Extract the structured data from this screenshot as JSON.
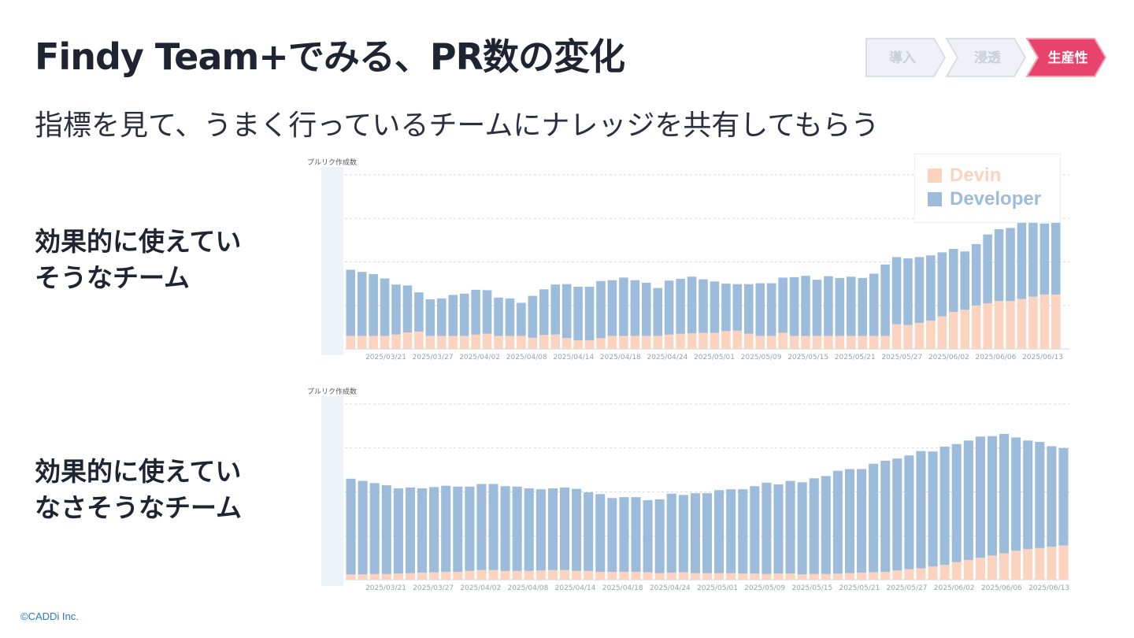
{
  "page": {
    "title": "Findy Team+でみる、PR数の変化",
    "subtitle": "指標を見て、うまく行っているチームにナレッジを共有してもらう",
    "copyright": "©CADDi Inc."
  },
  "steps": [
    {
      "label": "導入",
      "active": false
    },
    {
      "label": "浸透",
      "active": false
    },
    {
      "label": "生産性",
      "active": true
    }
  ],
  "colors": {
    "devin": "#fbd3be",
    "developer": "#9dbbdb",
    "accent": "#e8436b",
    "step_inactive_fill": "#eef1f6",
    "step_inactive_text": "#c9cfd9"
  },
  "legend": [
    {
      "name": "Devin",
      "color": "#fbd3be"
    },
    {
      "name": "Developer",
      "color": "#9dbbdb"
    }
  ],
  "teams": [
    {
      "label_line1": "効果的に使えてい",
      "label_line2": "そうなチーム"
    },
    {
      "label_line1": "効果的に使えてい",
      "label_line2": "なさそうなチーム"
    }
  ],
  "chart_data": [
    {
      "type": "bar",
      "stacked": true,
      "ylabel": "プルリク作成数",
      "grid": true,
      "legend_position": "top-right",
      "x_ticks": [
        "2025/03/21",
        "2025/03/27",
        "2025/04/02",
        "2025/04/08",
        "2025/04/14",
        "2025/04/18",
        "2025/04/24",
        "2025/05/01",
        "2025/05/09",
        "2025/05/15",
        "2025/05/21",
        "2025/05/27",
        "2025/06/02",
        "2025/06/06",
        "2025/06/13"
      ],
      "series": [
        {
          "name": "Devin",
          "values": [
            3,
            3,
            3,
            3,
            3.3,
            3.8,
            4,
            3,
            3,
            3,
            3,
            3.3,
            3.5,
            3,
            3,
            3,
            2.6,
            3.2,
            3.3,
            2.5,
            2,
            2,
            2.5,
            3,
            3,
            3,
            3,
            3,
            3.3,
            3.5,
            3.6,
            3.7,
            3.7,
            4.1,
            4.2,
            3.5,
            3,
            3,
            3.7,
            3,
            3,
            3,
            3,
            3,
            3,
            3,
            3,
            3,
            5.7,
            5.5,
            6,
            6.5,
            7.5,
            8.5,
            9,
            10,
            10.5,
            11,
            11,
            11.5,
            12,
            12.5,
            12.5
          ]
        },
        {
          "name": "Developer",
          "values": [
            15.2,
            14.7,
            14.2,
            13.2,
            11.5,
            10.8,
            9,
            8.4,
            8.6,
            9.4,
            9.7,
            10.3,
            10,
            8.8,
            8.6,
            7.6,
            9.6,
            10.5,
            11.5,
            12.4,
            12.3,
            12.3,
            13.1,
            12.8,
            13.4,
            12.8,
            12.2,
            11,
            12.4,
            12.6,
            13,
            12.3,
            11.8,
            10.9,
            10.7,
            11.4,
            12.1,
            12.1,
            12.7,
            13.5,
            13.8,
            12.9,
            13.7,
            13.3,
            13.6,
            13.3,
            14.3,
            16.4,
            15.4,
            15.3,
            15.1,
            15,
            14.7,
            14.5,
            13.4,
            14.1,
            15.8,
            16.5,
            16.8,
            17.6,
            17,
            16.3,
            16.5
          ]
        }
      ]
    },
    {
      "type": "bar",
      "stacked": true,
      "ylabel": "プルリク作成数",
      "grid": true,
      "x_ticks": [
        "2025/03/21",
        "2025/03/27",
        "2025/04/02",
        "2025/04/08",
        "2025/04/14",
        "2025/04/18",
        "2025/04/24",
        "2025/05/01",
        "2025/05/09",
        "2025/05/15",
        "2025/05/21",
        "2025/05/27",
        "2025/06/02",
        "2025/06/06",
        "2025/06/13"
      ],
      "series": [
        {
          "name": "Devin",
          "values": [
            1.2,
            1.2,
            1.3,
            1.3,
            1.4,
            1.5,
            1.6,
            1.7,
            1.8,
            1.8,
            2,
            2.2,
            2.2,
            2,
            2,
            2,
            2.1,
            2.2,
            2.2,
            2,
            2,
            1.8,
            1.8,
            1.8,
            1.8,
            1.7,
            1.5,
            1.6,
            1.7,
            1.5,
            1.5,
            1.5,
            1.5,
            1.4,
            1.4,
            1.3,
            1.4,
            1.4,
            1.2,
            1.3,
            1.3,
            1.4,
            1.5,
            1.6,
            1.7,
            1.8,
            2.1,
            2.4,
            2.6,
            3,
            3.4,
            4,
            4.5,
            5,
            5.5,
            6,
            6.6,
            7,
            7.2,
            7.5,
            7.8
          ]
        },
        {
          "name": "Developer",
          "values": [
            21.8,
            21.3,
            20.7,
            20.2,
            19.4,
            19.5,
            19.2,
            19.4,
            19.6,
            19.4,
            19.2,
            19.6,
            19.6,
            19.3,
            19.2,
            18.8,
            18.5,
            18.6,
            18.8,
            18.7,
            17.9,
            17.7,
            16.8,
            17,
            17,
            16.4,
            16.8,
            18,
            17.6,
            18.2,
            18.2,
            18.9,
            19.1,
            19.2,
            19.9,
            20.8,
            20.3,
            21.1,
            21,
            21.8,
            22.3,
            23.4,
            23.7,
            23.6,
            24.7,
            25.3,
            25.5,
            25.9,
            26.7,
            26.2,
            26.9,
            26.9,
            27.2,
            27.6,
            27.2,
            27.2,
            25.8,
            24.7,
            24.2,
            22.9,
            22.2
          ]
        }
      ]
    }
  ]
}
